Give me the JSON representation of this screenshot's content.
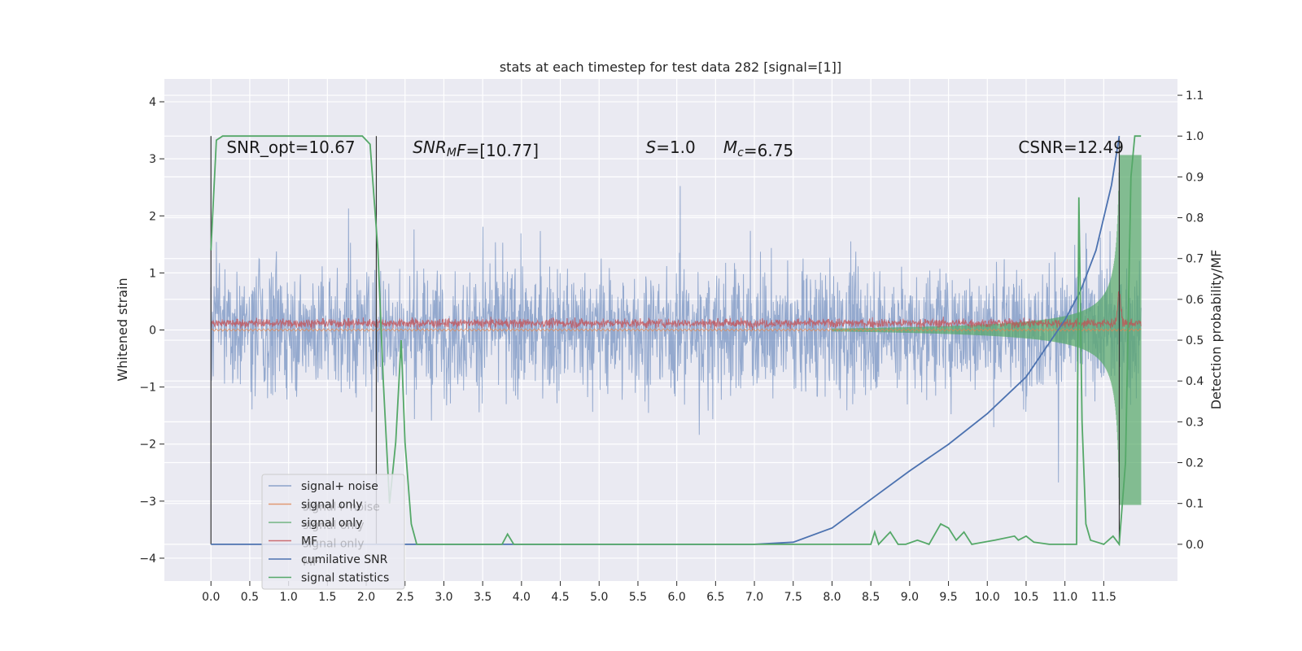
{
  "chart_data": {
    "type": "line",
    "title": "stats at each timestep for test data 282 [signal=[1]]",
    "ylabel": "Whitened strain",
    "ylabel_right": "Detection probability/MF",
    "xlabel": "",
    "xlim": [
      -0.6,
      12.45
    ],
    "ylim": [
      -4.4,
      4.4
    ],
    "ylim_right": [
      -0.09,
      1.14
    ],
    "x_ticks": [
      0.0,
      0.5,
      1.0,
      1.5,
      2.0,
      2.5,
      3.0,
      3.5,
      4.0,
      4.5,
      5.0,
      5.5,
      6.0,
      6.5,
      7.0,
      7.5,
      8.0,
      8.5,
      9.0,
      9.5,
      10.0,
      10.5,
      11.0,
      11.5
    ],
    "x_tick_labels": [
      "0.0",
      "0.5",
      "1.0",
      "1.5",
      "2.0",
      "2.5",
      "3.0",
      "3.5",
      "4.0",
      "4.5",
      "5.0",
      "5.5",
      "6.0",
      "6.5",
      "7.0",
      "7.5",
      "8.0",
      "8.5",
      "9.0",
      "9.5",
      "10.0",
      "10.5",
      "11.0",
      "11.5"
    ],
    "y_ticks": [
      -4,
      -3,
      -2,
      -1,
      0,
      1,
      2,
      3,
      4
    ],
    "y_tick_labels": [
      "−4",
      "−3",
      "−2",
      "−1",
      "0",
      "1",
      "2",
      "3",
      "4"
    ],
    "y_right_ticks": [
      0.0,
      0.1,
      0.2,
      0.3,
      0.4,
      0.5,
      0.6,
      0.7,
      0.8,
      0.9,
      1.0,
      1.1
    ],
    "y_right_tick_labels": [
      "0.0",
      "0.1",
      "0.2",
      "0.3",
      "0.4",
      "0.5",
      "0.6",
      "0.7",
      "0.8",
      "0.9",
      "1.0",
      "1.1"
    ],
    "grid": true,
    "legend_position": "lower-left",
    "annotations": [
      {
        "x": 0.2,
        "y": 3.1,
        "parts": [
          {
            "t": "SNR_opt=10.67"
          }
        ]
      },
      {
        "x": 2.6,
        "y": 3.1,
        "parts": [
          {
            "t": "SNR",
            "i": true
          },
          {
            "t": "M",
            "i": true,
            "sub": true
          },
          {
            "t": "F",
            "i": true
          },
          {
            "t": "=[10.77]"
          }
        ]
      },
      {
        "x": 5.6,
        "y": 3.1,
        "parts": [
          {
            "t": "S",
            "i": true
          },
          {
            "t": "=1.0"
          }
        ]
      },
      {
        "x": 6.6,
        "y": 3.1,
        "parts": [
          {
            "t": "M",
            "i": true
          },
          {
            "t": "c",
            "i": true,
            "sub": true
          },
          {
            "t": "=6.75"
          }
        ]
      },
      {
        "x": 10.4,
        "y": 3.1,
        "parts": [
          {
            "t": "CSNR=12.49"
          }
        ]
      }
    ],
    "vertical_lines": [
      0.0,
      2.13,
      11.7
    ],
    "series": [
      {
        "name": "signal+ noise",
        "color": "#4c72b0",
        "axis": "left",
        "kind": "noise",
        "x_range": [
          0.0,
          11.98
        ],
        "typical_amplitude": 1.3,
        "max": 4.0,
        "min": -4.1
      },
      {
        "name": "signal only",
        "color": "#dd8452",
        "axis": "left",
        "kind": "chirp",
        "x_range": [
          0.0,
          11.98
        ]
      },
      {
        "name": "signal only",
        "color": "#55a868",
        "axis": "left",
        "kind": "chirp_envelope",
        "x_range": [
          8.0,
          11.98
        ],
        "peak_amplitude": 3.2
      },
      {
        "name": "MF",
        "color": "#c44e52",
        "axis": "left",
        "kind": "mf",
        "x_range": [
          0.0,
          11.98
        ],
        "typical_range": [
          0.0,
          0.3
        ]
      },
      {
        "name": "cumilative SNR",
        "color": "#4c72b0",
        "axis": "right",
        "x": [
          0.0,
          7.0,
          7.5,
          8.0,
          8.5,
          9.0,
          9.5,
          10.0,
          10.5,
          11.0,
          11.2,
          11.4,
          11.6,
          11.7
        ],
        "y": [
          0.0,
          0.0,
          0.005,
          0.04,
          0.11,
          0.18,
          0.245,
          0.32,
          0.41,
          0.55,
          0.62,
          0.72,
          0.88,
          1.0
        ]
      },
      {
        "name": "signal statistics",
        "color": "#55a868",
        "axis": "right",
        "x": [
          0.0,
          0.07,
          0.15,
          1.95,
          2.05,
          2.15,
          2.22,
          2.3,
          2.38,
          2.45,
          2.5,
          2.58,
          2.65,
          3.0,
          3.75,
          3.82,
          3.9,
          8.5,
          8.55,
          8.6,
          8.7,
          8.75,
          8.85,
          8.95,
          9.1,
          9.25,
          9.4,
          9.5,
          9.6,
          9.7,
          9.8,
          10.1,
          10.35,
          10.4,
          10.5,
          10.6,
          10.8,
          11.15,
          11.18,
          11.22,
          11.27,
          11.33,
          11.5,
          11.62,
          11.7,
          11.78,
          11.85,
          11.9,
          11.98
        ],
        "y": [
          0.72,
          0.99,
          1.0,
          1.0,
          0.98,
          0.72,
          0.4,
          0.1,
          0.25,
          0.5,
          0.25,
          0.05,
          0.0,
          0.0,
          0.0,
          0.025,
          0.0,
          0.0,
          0.03,
          0.0,
          0.02,
          0.03,
          0.0,
          0.0,
          0.01,
          0.0,
          0.05,
          0.04,
          0.01,
          0.03,
          0.0,
          0.01,
          0.02,
          0.01,
          0.02,
          0.005,
          0.0,
          0.0,
          0.85,
          0.3,
          0.05,
          0.01,
          0.0,
          0.02,
          0.0,
          0.2,
          0.9,
          1.0,
          1.0
        ]
      }
    ],
    "legend_entries": [
      {
        "label": "signal+ noise",
        "color": "#4c72b0",
        "alpha": 0.6
      },
      {
        "label": "signal only",
        "color": "#dd8452",
        "alpha": 0.8
      },
      {
        "label": "signal only",
        "color": "#55a868",
        "alpha": 0.8
      },
      {
        "label": "MF",
        "color": "#c44e52",
        "alpha": 0.8
      },
      {
        "label": "cumilative SNR",
        "color": "#4c72b0",
        "alpha": 1
      },
      {
        "label": "signal statistics",
        "color": "#55a868",
        "alpha": 1
      }
    ],
    "legend_ghost_entries": [
      "signal+ noise",
      "signal only",
      "signal only",
      "MF"
    ]
  }
}
